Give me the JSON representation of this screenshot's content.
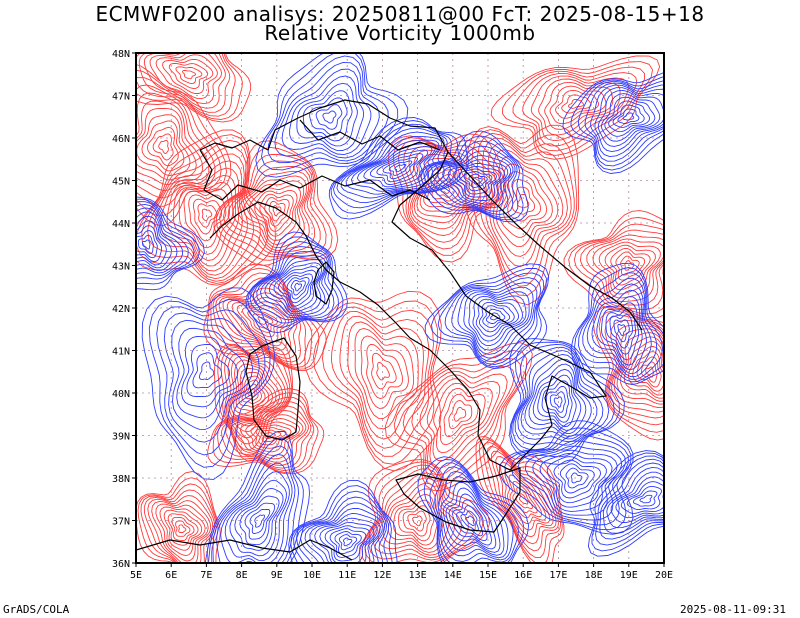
{
  "title": {
    "line1": "ECMWF0200 analisys: 20250811@00 FcT: 2025-08-15+18",
    "line2": "Relative Vorticity 1000mb"
  },
  "footer": {
    "left": "GrADS/COLA",
    "right": "2025-08-11-09:31"
  },
  "map": {
    "lon_range": [
      5,
      20
    ],
    "lat_range": [
      36,
      48
    ],
    "lon_ticks": [
      "5E",
      "6E",
      "7E",
      "8E",
      "9E",
      "10E",
      "11E",
      "12E",
      "13E",
      "14E",
      "15E",
      "16E",
      "17E",
      "18E",
      "19E",
      "20E"
    ],
    "lat_ticks": [
      "36N",
      "37N",
      "38N",
      "39N",
      "40N",
      "41N",
      "42N",
      "43N",
      "44N",
      "45N",
      "46N",
      "47N",
      "48N"
    ],
    "colors": {
      "positive_contour": "#ff3b3b",
      "negative_contour": "#2d3cff",
      "coastline": "#000000",
      "grid": "#b08aa0"
    },
    "field": [
      {
        "lon": 7.0,
        "lat": 44.2,
        "sign": 1,
        "strength": 1.0,
        "size": 0.9
      },
      {
        "lon": 9.0,
        "lat": 44.3,
        "sign": 1,
        "strength": 1.0,
        "size": 0.7
      },
      {
        "lon": 5.8,
        "lat": 45.8,
        "sign": 1,
        "strength": 0.8,
        "size": 0.8
      },
      {
        "lon": 6.5,
        "lat": 47.5,
        "sign": 1,
        "strength": 0.6,
        "size": 0.6
      },
      {
        "lon": 8.6,
        "lat": 41.7,
        "sign": 1,
        "strength": 1.0,
        "size": 0.6
      },
      {
        "lon": 8.3,
        "lat": 40.0,
        "sign": 1,
        "strength": 1.0,
        "size": 0.5
      },
      {
        "lon": 8.8,
        "lat": 39.0,
        "sign": 1,
        "strength": 0.9,
        "size": 0.5
      },
      {
        "lon": 13.8,
        "lat": 44.8,
        "sign": 1,
        "strength": 1.0,
        "size": 0.7
      },
      {
        "lon": 16.0,
        "lat": 44.5,
        "sign": 1,
        "strength": 0.8,
        "size": 0.9
      },
      {
        "lon": 19.6,
        "lat": 40.5,
        "sign": 1,
        "strength": 1.0,
        "size": 0.7
      },
      {
        "lon": 13.0,
        "lat": 37.0,
        "sign": 1,
        "strength": 0.9,
        "size": 0.7
      },
      {
        "lon": 6.3,
        "lat": 36.8,
        "sign": 1,
        "strength": 0.9,
        "size": 0.5
      },
      {
        "lon": 12.0,
        "lat": 40.5,
        "sign": 1,
        "strength": 0.6,
        "size": 1.0
      },
      {
        "lon": 14.2,
        "lat": 39.5,
        "sign": 1,
        "strength": 0.6,
        "size": 0.8
      },
      {
        "lon": 17.5,
        "lat": 46.8,
        "sign": 1,
        "strength": 0.6,
        "size": 0.7
      },
      {
        "lon": 16.0,
        "lat": 37.5,
        "sign": 1,
        "strength": 0.8,
        "size": 0.5
      },
      {
        "lon": 19.0,
        "lat": 43.0,
        "sign": 1,
        "strength": 0.7,
        "size": 0.6
      },
      {
        "lon": 9.6,
        "lat": 42.5,
        "sign": -1,
        "strength": 1.0,
        "size": 0.5
      },
      {
        "lon": 5.3,
        "lat": 43.5,
        "sign": -1,
        "strength": 0.8,
        "size": 0.5
      },
      {
        "lon": 12.5,
        "lat": 45.3,
        "sign": -1,
        "strength": 1.0,
        "size": 0.6
      },
      {
        "lon": 14.7,
        "lat": 45.0,
        "sign": -1,
        "strength": 0.9,
        "size": 0.5
      },
      {
        "lon": 15.2,
        "lat": 41.8,
        "sign": -1,
        "strength": 1.0,
        "size": 0.6
      },
      {
        "lon": 17.0,
        "lat": 39.8,
        "sign": -1,
        "strength": 1.0,
        "size": 0.7
      },
      {
        "lon": 18.8,
        "lat": 41.5,
        "sign": -1,
        "strength": 0.8,
        "size": 0.6
      },
      {
        "lon": 11.0,
        "lat": 36.5,
        "sign": -1,
        "strength": 1.0,
        "size": 0.6
      },
      {
        "lon": 14.5,
        "lat": 37.0,
        "sign": -1,
        "strength": 0.9,
        "size": 0.6
      },
      {
        "lon": 8.5,
        "lat": 37.0,
        "sign": -1,
        "strength": 0.7,
        "size": 0.7
      },
      {
        "lon": 19.0,
        "lat": 46.5,
        "sign": -1,
        "strength": 0.9,
        "size": 0.6
      },
      {
        "lon": 7.0,
        "lat": 40.5,
        "sign": -1,
        "strength": 0.5,
        "size": 1.0
      },
      {
        "lon": 10.5,
        "lat": 46.5,
        "sign": -1,
        "strength": 0.6,
        "size": 0.8
      },
      {
        "lon": 17.5,
        "lat": 38.0,
        "sign": -1,
        "strength": 0.7,
        "size": 0.7
      },
      {
        "lon": 19.5,
        "lat": 37.5,
        "sign": -1,
        "strength": 0.7,
        "size": 0.6
      }
    ]
  }
}
